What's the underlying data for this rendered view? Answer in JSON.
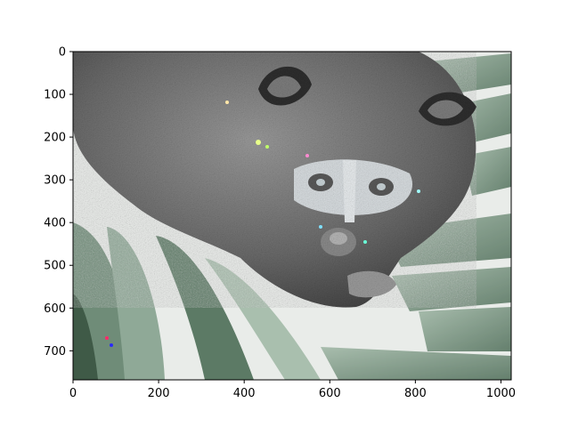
{
  "image": {
    "subject": "raccoon-among-palm-fronds",
    "display": "inverted-color raster",
    "extent_x": [
      0,
      1024
    ],
    "extent_y": [
      768,
      0
    ]
  },
  "axes": {
    "x_ticks": [
      0,
      200,
      400,
      600,
      800,
      1000
    ],
    "y_ticks": [
      0,
      100,
      200,
      300,
      400,
      500,
      600,
      700
    ],
    "x_tick_labels": [
      "0",
      "200",
      "400",
      "600",
      "800",
      "1000"
    ],
    "y_tick_labels": [
      "0",
      "100",
      "200",
      "300",
      "400",
      "500",
      "600",
      "700"
    ]
  },
  "colors": {
    "fur_dark": "#3a3a3a",
    "fur_mid": "#8b8b8b",
    "leaf_green": "#5f7d68",
    "leaf_light": "#c5d6c9",
    "background_light": "#eef1ef"
  }
}
